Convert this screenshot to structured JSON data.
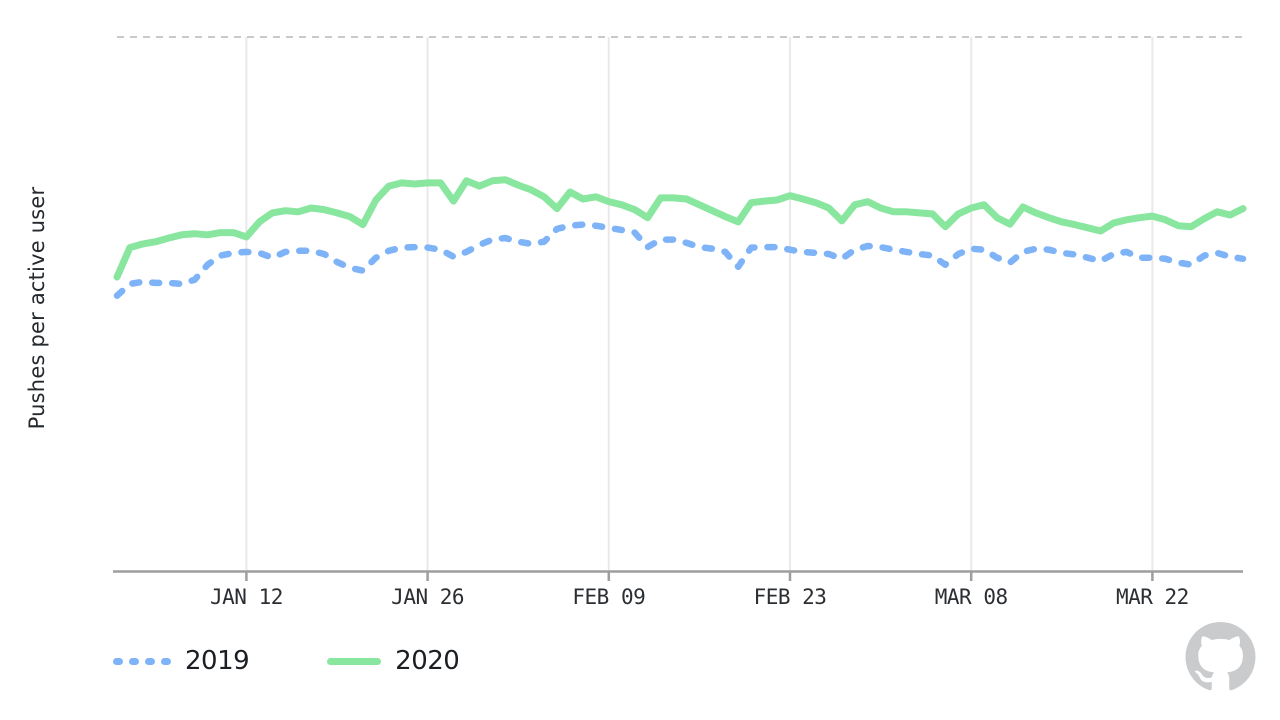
{
  "chart_data": {
    "type": "line",
    "title": "",
    "xlabel": "",
    "ylabel": "Pushes per active user",
    "y_scale_note": "y axis has no tick labels; values normalized 0-100 where 0 = x-axis baseline and 100 = dashed top boundary",
    "ylim": [
      0,
      100
    ],
    "grid": "vertical-only",
    "top_boundary_dashed": true,
    "legend_position": "bottom-left",
    "colors": {
      "grid": "#e9e9e9",
      "axis": "#9e9e9e",
      "top_border": "#c9c9c9",
      "tick_text": "#2b2f33",
      "legend_text": "#1b1f23",
      "series_2019": "#7fb3f7",
      "series_2020": "#88e69e",
      "logo_gray": "#c9cbcd"
    },
    "x_ticks": [
      {
        "label": "JAN 12",
        "day_index": 10
      },
      {
        "label": "JAN 26",
        "day_index": 24
      },
      {
        "label": "FEB 09",
        "day_index": 38
      },
      {
        "label": "FEB 23",
        "day_index": 52
      },
      {
        "label": "MAR 08",
        "day_index": 66
      },
      {
        "label": "MAR 22",
        "day_index": 80
      }
    ],
    "series": [
      {
        "name": "2019",
        "style": "dashed",
        "color": "#7fb3f7",
        "values": [
          51.6,
          53.8,
          54.2,
          54.0,
          54.0,
          53.8,
          54.6,
          57.4,
          59.1,
          59.6,
          59.8,
          59.6,
          58.7,
          59.8,
          60.0,
          60.0,
          59.4,
          57.9,
          56.8,
          56.3,
          58.7,
          60.0,
          60.6,
          60.7,
          60.6,
          60.2,
          58.9,
          59.8,
          61.1,
          62.1,
          62.4,
          61.7,
          61.3,
          61.7,
          64.1,
          64.7,
          64.9,
          64.7,
          64.3,
          63.9,
          63.4,
          60.7,
          62.1,
          62.1,
          61.5,
          60.7,
          60.4,
          59.8,
          57.0,
          60.6,
          60.7,
          60.7,
          60.2,
          59.8,
          59.6,
          59.4,
          58.5,
          60.2,
          60.9,
          60.7,
          60.2,
          59.8,
          59.4,
          59.1,
          57.4,
          59.4,
          60.4,
          60.2,
          58.7,
          57.8,
          59.8,
          60.4,
          60.2,
          59.6,
          59.3,
          58.7,
          58.1,
          59.4,
          59.8,
          58.7,
          58.7,
          58.5,
          57.8,
          57.4,
          59.1,
          59.6,
          58.9,
          58.5
        ]
      },
      {
        "name": "2020",
        "style": "solid",
        "color": "#88e69e",
        "values": [
          55.1,
          60.6,
          61.3,
          61.7,
          62.4,
          63.0,
          63.2,
          63.0,
          63.4,
          63.4,
          62.6,
          65.4,
          67.1,
          67.5,
          67.3,
          68.0,
          67.7,
          67.1,
          66.4,
          64.9,
          69.5,
          72.1,
          72.7,
          72.5,
          72.7,
          72.7,
          69.3,
          73.1,
          72.1,
          73.1,
          73.3,
          72.3,
          71.4,
          70.1,
          67.9,
          71.0,
          69.7,
          70.1,
          69.2,
          68.6,
          67.7,
          66.2,
          69.9,
          69.9,
          69.7,
          68.6,
          67.5,
          66.4,
          65.4,
          69.0,
          69.3,
          69.5,
          70.3,
          69.7,
          69.0,
          68.0,
          65.6,
          68.6,
          69.2,
          68.0,
          67.3,
          67.3,
          67.1,
          66.9,
          64.5,
          66.9,
          68.0,
          68.6,
          66.2,
          65.0,
          68.2,
          67.1,
          66.2,
          65.4,
          64.9,
          64.3,
          63.7,
          65.2,
          65.8,
          66.2,
          66.5,
          65.8,
          64.7,
          64.5,
          66.0,
          67.3,
          66.7,
          67.9
        ]
      }
    ]
  },
  "branding": {
    "logo": "github-octocat-mark"
  }
}
